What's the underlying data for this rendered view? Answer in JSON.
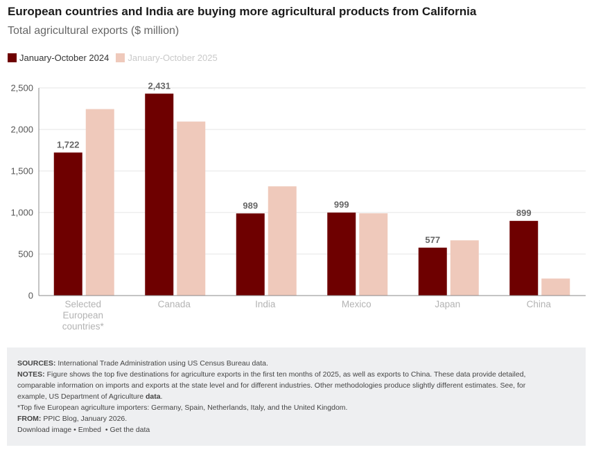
{
  "header": {
    "title": "European countries and India are buying more agricultural products from California",
    "subtitle": "Total agricultural exports ($ million)"
  },
  "colors": {
    "series_2024": "#6e0000",
    "series_2025": "#efc9bb",
    "grid": "#e6e6e6",
    "axis": "#888888"
  },
  "chart_data": {
    "type": "bar",
    "title": "European countries and India are buying more agricultural products from California",
    "subtitle": "Total agricultural exports ($ million)",
    "xlabel": "",
    "ylabel": "",
    "ylim": [
      0,
      2500
    ],
    "yticks": [
      0,
      500,
      1000,
      1500,
      2000,
      2500
    ],
    "ytick_labels": [
      "0",
      "500",
      "1,000",
      "1,500",
      "2,000",
      "2,500"
    ],
    "grid": true,
    "legend_position": "top-left",
    "categories": [
      "Selected European countries*",
      "Canada",
      "India",
      "Mexico",
      "Japan",
      "China"
    ],
    "category_lines": [
      [
        "Selected",
        "European",
        "countries*"
      ],
      [
        "Canada"
      ],
      [
        "India"
      ],
      [
        "Mexico"
      ],
      [
        "Japan"
      ],
      [
        "China"
      ]
    ],
    "series": [
      {
        "name": "January-October 2024",
        "values": [
          1722,
          2431,
          989,
          999,
          577,
          899
        ],
        "labels": [
          "1,722",
          "2,431",
          "989",
          "999",
          "577",
          "899"
        ]
      },
      {
        "name": "January-October 2025",
        "values": [
          2245,
          2095,
          1315,
          990,
          665,
          205
        ]
      }
    ]
  },
  "notes": {
    "sources_label": "SOURCES:",
    "sources_text": "International Trade Administration using US Census Bureau data.",
    "notes_label": "NOTES:",
    "notes_text_1": "Figure shows the top five destinations for agriculture exports in the first ten months of 2025, as well as exports to China. These data provide detailed,",
    "notes_text_2": "comparable information on imports and exports at the state level and for different industries. Other methodologies produce slightly different estimates. See, for",
    "notes_text_3": "example, US Department of Agriculture",
    "notes_link": "data",
    "notes_end": ".",
    "footnote": "*Top five European agriculture importers: Germany, Spain, Netherlands, Italy, and the United Kingdom.",
    "from_label": "FROM:",
    "from_text": "PPIC Blog, January 2026."
  },
  "links": {
    "download": "Download image",
    "embed": "Embed",
    "get_data": "Get the data",
    "separator": "•"
  }
}
